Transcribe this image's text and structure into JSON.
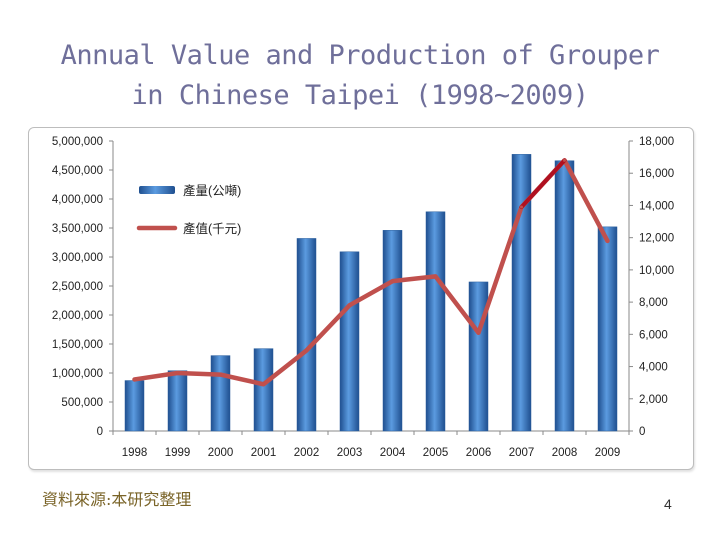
{
  "slide": {
    "title_line1": "Annual Value and Production of Grouper",
    "title_line2": "in Chinese Taipei (1998~2009)",
    "source": "資料來源:本研究整理",
    "page_number": "4"
  },
  "colors": {
    "bar": "#2f6fb5",
    "line": "#c0504d",
    "line_highlight": "#b01020",
    "title": "#6f6f9a"
  },
  "chart_data": {
    "type": "bar",
    "categories": [
      "1998",
      "1999",
      "2000",
      "2001",
      "2002",
      "2003",
      "2004",
      "2005",
      "2006",
      "2007",
      "2008",
      "2009"
    ],
    "series": [
      {
        "name": "產量(公噸)",
        "chart_type": "bar",
        "axis": "left",
        "values": [
          870000,
          1040000,
          1300000,
          1420000,
          3320000,
          3090000,
          3460000,
          3780000,
          2570000,
          4770000,
          4660000,
          3520000
        ]
      },
      {
        "name": "產值(千元)",
        "chart_type": "line",
        "axis": "right",
        "values": [
          3200,
          3600,
          3500,
          2900,
          5000,
          7800,
          9300,
          9600,
          6100,
          13900,
          16800,
          11800
        ]
      }
    ],
    "y_left": {
      "min": 0,
      "max": 5000000,
      "ticks": [
        "0",
        "500,000",
        "1,000,000",
        "1,500,000",
        "2,000,000",
        "2,500,000",
        "3,000,000",
        "3,500,000",
        "4,000,000",
        "4,500,000",
        "5,000,000"
      ]
    },
    "y_right": {
      "min": 0,
      "max": 18000,
      "ticks": [
        "0",
        "2,000",
        "4,000",
        "6,000",
        "8,000",
        "10,000",
        "12,000",
        "14,000",
        "16,000",
        "18,000"
      ]
    },
    "grid": false,
    "legend_position": "top-left inside plot"
  }
}
